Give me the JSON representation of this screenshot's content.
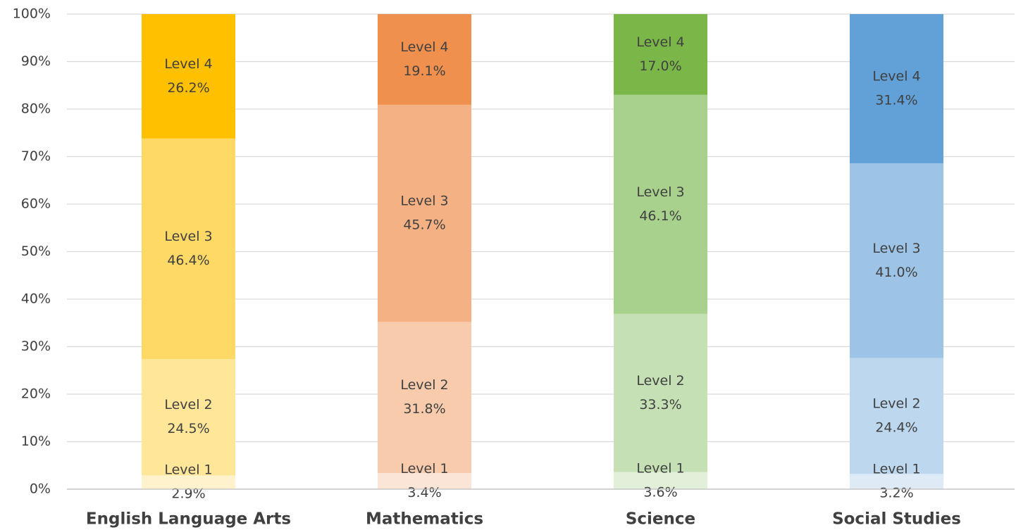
{
  "chart_data": {
    "type": "stacked_bar",
    "categories": [
      "English Language Arts",
      "Mathematics",
      "Science",
      "Social Studies"
    ],
    "series": [
      {
        "name": "Level 1",
        "colors": [
          "#FFF2CC",
          "#FBE5D6",
          "#E2F0D9",
          "#DEEBF7"
        ],
        "values": [
          2.9,
          3.4,
          3.6,
          3.2
        ],
        "value_labels": [
          "2.9%",
          "3.4%",
          "3.6%",
          "3.2%"
        ]
      },
      {
        "name": "Level 2",
        "colors": [
          "#FFE699",
          "#F8CBAD",
          "#C5E0B4",
          "#BDD7EE"
        ],
        "values": [
          24.5,
          31.8,
          33.3,
          24.4
        ],
        "value_labels": [
          "24.5%",
          "31.8%",
          "33.3%",
          "24.4%"
        ]
      },
      {
        "name": "Level 3",
        "colors": [
          "#FFD966",
          "#F4B183",
          "#A9D18E",
          "#9DC3E6"
        ],
        "values": [
          46.4,
          45.7,
          46.1,
          41.0
        ],
        "value_labels": [
          "46.4%",
          "45.7%",
          "46.1%",
          "41.0%"
        ]
      },
      {
        "name": "Level 4",
        "colors": [
          "#FFC000",
          "#F0904F",
          "#7AB648",
          "#62A0D8"
        ],
        "values": [
          26.2,
          19.1,
          17.0,
          31.4
        ],
        "value_labels": [
          "26.2%",
          "19.1%",
          "17.0%",
          "31.4%"
        ]
      }
    ],
    "ylim": [
      0,
      100
    ],
    "yticks": [
      {
        "value": 0,
        "label": "0%"
      },
      {
        "value": 10,
        "label": "10%"
      },
      {
        "value": 20,
        "label": "20%"
      },
      {
        "value": 30,
        "label": "30%"
      },
      {
        "value": 40,
        "label": "40%"
      },
      {
        "value": 50,
        "label": "50%"
      },
      {
        "value": 60,
        "label": "60%"
      },
      {
        "value": 70,
        "label": "70%"
      },
      {
        "value": 80,
        "label": "80%"
      },
      {
        "value": 90,
        "label": "90%"
      },
      {
        "value": 100,
        "label": "100%"
      }
    ],
    "grid": true
  }
}
